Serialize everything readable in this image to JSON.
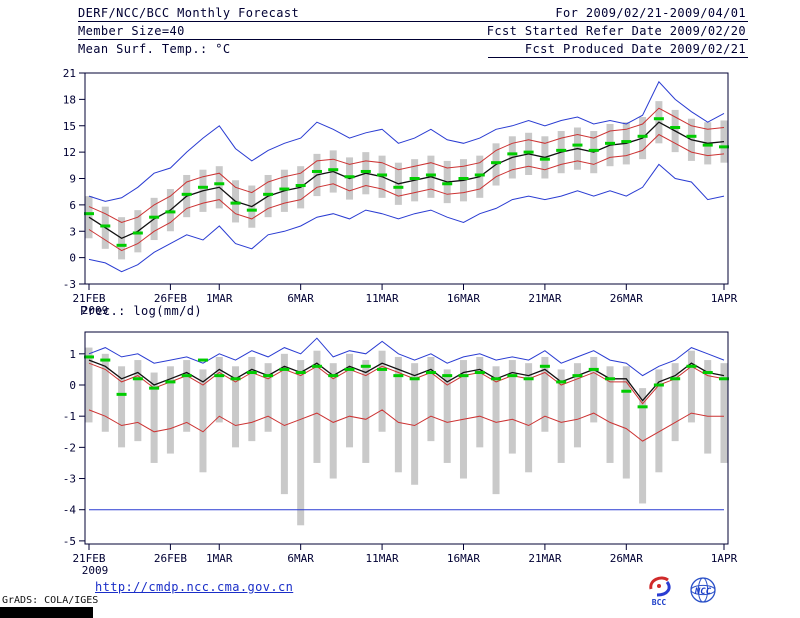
{
  "header": {
    "title": "DERF/NCC/BCC Monthly Forecast",
    "member_size": "Member Size=40",
    "variable": "Mean Surf. Temp.: °C",
    "for_range": "For 2009/02/21-2009/04/01",
    "refer_date": "Fcst Started Refer Date 2009/02/20",
    "produced_date": "Fcst Produced Date 2009/02/21"
  },
  "footer": {
    "url": "http://cmdp.ncc.cma.gov.cn",
    "grads_credit": "GrADS: COLA/IGES",
    "logos": [
      "BCC",
      "NCC"
    ]
  },
  "colors": {
    "foreground": "#000033",
    "blue": "#2a3cd2",
    "red": "#cc3333",
    "green": "#00cc00",
    "gray": "#c9c9c9",
    "black": "#111111",
    "url_blue": "#1a2ec8"
  },
  "chart_data": [
    {
      "type": "line",
      "title": "Mean Surf. Temp.: °C",
      "n_points": 40,
      "ylim": [
        -3,
        21
      ],
      "yticks": [
        21,
        18,
        15,
        12,
        9,
        6,
        3,
        0,
        -3
      ],
      "x_tick_labels": [
        "21FEB",
        "26FEB",
        "1MAR",
        "6MAR",
        "11MAR",
        "16MAR",
        "21MAR",
        "26MAR",
        "1APR"
      ],
      "x_tick_positions": [
        0,
        5,
        8,
        13,
        18,
        23,
        28,
        33,
        39
      ],
      "x_sub_label": "2009",
      "series": [
        {
          "name": "ensemble-spread-bar",
          "type": "bar",
          "color": "#c9c9c9",
          "low": [
            2.2,
            1.0,
            -0.2,
            0.6,
            2.0,
            3.0,
            4.6,
            5.2,
            5.6,
            4.0,
            3.4,
            4.6,
            5.2,
            5.6,
            7.0,
            7.4,
            6.6,
            7.2,
            6.8,
            6.0,
            6.4,
            6.8,
            6.2,
            6.4,
            6.8,
            8.2,
            9.0,
            9.4,
            9.0,
            9.6,
            10.0,
            9.6,
            10.4,
            10.6,
            11.2,
            13.0,
            12.0,
            11.0,
            10.6,
            10.8
          ],
          "high": [
            7.0,
            5.8,
            4.6,
            5.4,
            6.8,
            7.8,
            9.4,
            10.0,
            10.4,
            8.8,
            8.2,
            9.4,
            10.0,
            10.4,
            11.8,
            12.2,
            11.4,
            12.0,
            11.6,
            10.8,
            11.2,
            11.6,
            11.0,
            11.2,
            11.6,
            13.0,
            13.8,
            14.2,
            13.8,
            14.4,
            14.8,
            14.4,
            15.2,
            15.4,
            16.0,
            17.8,
            16.8,
            15.8,
            15.4,
            15.6
          ]
        },
        {
          "name": "ensemble-max-line",
          "type": "line",
          "color": "#2a3cd2",
          "values": [
            7.0,
            6.4,
            6.8,
            8.0,
            9.6,
            10.2,
            12.0,
            13.6,
            15.0,
            12.4,
            11.0,
            12.2,
            13.0,
            13.6,
            15.4,
            14.6,
            13.6,
            14.2,
            14.6,
            13.0,
            13.6,
            14.6,
            13.4,
            13.0,
            13.6,
            14.6,
            15.0,
            15.6,
            15.0,
            15.6,
            16.0,
            15.2,
            15.6,
            15.2,
            16.2,
            20.0,
            18.0,
            16.6,
            15.4,
            16.4
          ]
        },
        {
          "name": "ensemble-min-line",
          "type": "line",
          "color": "#2a3cd2",
          "values": [
            -0.2,
            -0.6,
            -1.6,
            -0.8,
            0.6,
            1.6,
            2.6,
            2.0,
            3.6,
            1.6,
            1.0,
            2.6,
            3.0,
            3.6,
            4.6,
            5.0,
            4.4,
            5.4,
            5.0,
            4.4,
            5.0,
            5.4,
            4.6,
            4.0,
            5.0,
            5.6,
            6.6,
            7.0,
            6.6,
            7.0,
            7.6,
            7.0,
            7.6,
            7.0,
            8.0,
            10.6,
            9.0,
            8.6,
            6.6,
            7.0
          ]
        },
        {
          "name": "upper-quartile-line",
          "type": "line",
          "color": "#cc3333",
          "values": [
            5.8,
            5.0,
            4.0,
            4.6,
            6.0,
            7.0,
            8.6,
            9.2,
            9.6,
            8.0,
            7.4,
            8.6,
            9.2,
            9.6,
            11.0,
            11.2,
            10.6,
            11.0,
            10.8,
            10.0,
            10.4,
            10.8,
            10.2,
            10.4,
            10.8,
            12.2,
            13.0,
            13.4,
            13.0,
            13.6,
            14.0,
            13.6,
            14.4,
            14.6,
            15.2,
            17.0,
            16.0,
            15.0,
            14.6,
            14.8
          ]
        },
        {
          "name": "lower-quartile-line",
          "type": "line",
          "color": "#cc3333",
          "values": [
            3.2,
            2.0,
            0.8,
            1.6,
            3.0,
            4.0,
            5.6,
            6.2,
            6.6,
            5.0,
            4.4,
            5.6,
            6.2,
            6.6,
            8.0,
            8.4,
            7.6,
            8.2,
            7.8,
            7.0,
            7.4,
            7.8,
            7.2,
            7.4,
            7.8,
            9.2,
            10.0,
            10.4,
            10.0,
            10.6,
            11.0,
            10.6,
            11.4,
            11.6,
            12.2,
            14.0,
            13.0,
            12.0,
            11.6,
            11.8
          ]
        },
        {
          "name": "ensemble-mean-line",
          "type": "line",
          "color": "#111111",
          "width": 1.3,
          "values": [
            4.6,
            3.4,
            2.2,
            3.0,
            4.4,
            5.4,
            7.0,
            7.6,
            8.0,
            6.4,
            5.8,
            7.0,
            7.6,
            8.0,
            9.4,
            9.8,
            9.0,
            9.6,
            9.2,
            8.4,
            8.8,
            9.2,
            8.6,
            8.8,
            9.2,
            10.6,
            11.4,
            11.8,
            11.4,
            12.0,
            12.4,
            12.0,
            12.8,
            13.0,
            13.6,
            15.4,
            14.4,
            13.4,
            13.0,
            13.2
          ]
        },
        {
          "name": "observation-dash",
          "type": "dash",
          "color": "#00cc00",
          "values": [
            5.0,
            3.6,
            1.4,
            2.8,
            4.6,
            5.2,
            7.2,
            8.0,
            8.4,
            6.2,
            5.4,
            7.2,
            7.8,
            8.2,
            9.8,
            10.0,
            9.2,
            9.8,
            9.4,
            8.0,
            9.0,
            9.4,
            8.4,
            9.0,
            9.4,
            10.8,
            11.8,
            12.0,
            11.2,
            12.2,
            12.8,
            12.2,
            13.0,
            13.2,
            13.8,
            15.8,
            14.8,
            13.8,
            12.8,
            12.6
          ]
        }
      ]
    },
    {
      "type": "line",
      "title": "Prec.: log(mm/d)",
      "n_points": 40,
      "ylim": [
        -5.1,
        1.7
      ],
      "yticks": [
        1,
        0,
        -1,
        -2,
        -3,
        -4,
        -5
      ],
      "x_tick_labels": [
        "21FEB",
        "26FEB",
        "1MAR",
        "6MAR",
        "11MAR",
        "16MAR",
        "21MAR",
        "26MAR",
        "1APR"
      ],
      "x_tick_positions": [
        0,
        5,
        8,
        13,
        18,
        23,
        28,
        33,
        39
      ],
      "x_sub_label": "2009",
      "series": [
        {
          "name": "ensemble-spread-bar",
          "type": "bar",
          "color": "#c9c9c9",
          "low": [
            -1.2,
            -1.5,
            -2.0,
            -1.8,
            -2.5,
            -2.2,
            -1.5,
            -2.8,
            -1.2,
            -2.0,
            -1.8,
            -1.5,
            -3.5,
            -4.5,
            -2.5,
            -3.0,
            -2.0,
            -2.5,
            -1.5,
            -2.8,
            -3.2,
            -1.8,
            -2.5,
            -3.0,
            -2.0,
            -3.5,
            -2.2,
            -2.8,
            -1.5,
            -2.5,
            -2.0,
            -1.2,
            -2.5,
            -3.0,
            -3.8,
            -2.8,
            -1.8,
            -1.2,
            -2.2,
            -2.5
          ],
          "high": [
            1.2,
            1.0,
            0.6,
            0.8,
            0.4,
            0.6,
            0.8,
            0.5,
            0.9,
            0.6,
            0.9,
            0.7,
            1.0,
            0.8,
            1.1,
            0.7,
            1.0,
            0.8,
            1.1,
            0.9,
            0.7,
            0.9,
            0.5,
            0.8,
            0.9,
            0.6,
            0.8,
            0.7,
            0.9,
            0.5,
            0.7,
            0.9,
            0.6,
            0.6,
            -0.1,
            0.5,
            0.7,
            1.1,
            0.8,
            0.7
          ]
        },
        {
          "name": "ensemble-max-line",
          "type": "line",
          "color": "#2a3cd2",
          "values": [
            1.0,
            1.2,
            0.9,
            1.0,
            0.7,
            0.8,
            0.9,
            0.7,
            1.0,
            0.8,
            1.1,
            0.9,
            1.2,
            1.0,
            1.5,
            0.9,
            1.1,
            1.0,
            1.4,
            1.0,
            0.8,
            1.0,
            0.7,
            0.9,
            1.0,
            0.8,
            0.9,
            0.8,
            1.1,
            0.7,
            0.9,
            1.1,
            0.8,
            0.7,
            0.3,
            0.6,
            0.8,
            1.2,
            1.0,
            0.8
          ]
        },
        {
          "name": "ensemble-min-floor-line",
          "type": "line",
          "color": "#2a3cd2",
          "constant": -4
        },
        {
          "name": "upper-quartile-line",
          "type": "line",
          "color": "#cc3333",
          "values": [
            0.7,
            0.5,
            0.1,
            0.3,
            -0.1,
            0.1,
            0.3,
            0.0,
            0.4,
            0.1,
            0.4,
            0.2,
            0.5,
            0.3,
            0.6,
            0.2,
            0.5,
            0.3,
            0.6,
            0.4,
            0.2,
            0.4,
            0.0,
            0.3,
            0.4,
            0.1,
            0.3,
            0.2,
            0.4,
            0.0,
            0.2,
            0.4,
            0.1,
            0.1,
            -0.6,
            0.0,
            0.2,
            0.6,
            0.3,
            0.2
          ]
        },
        {
          "name": "lower-quartile-line",
          "type": "line",
          "color": "#cc3333",
          "values": [
            -0.8,
            -1.0,
            -1.3,
            -1.2,
            -1.5,
            -1.4,
            -1.2,
            -1.5,
            -1.0,
            -1.3,
            -1.2,
            -1.0,
            -1.3,
            -1.1,
            -0.9,
            -1.2,
            -1.0,
            -1.1,
            -0.8,
            -1.2,
            -1.3,
            -1.0,
            -1.2,
            -1.1,
            -1.0,
            -1.2,
            -1.1,
            -1.3,
            -1.0,
            -1.2,
            -1.1,
            -0.9,
            -1.2,
            -1.4,
            -1.8,
            -1.5,
            -1.2,
            -0.9,
            -1.0,
            -1.0
          ]
        },
        {
          "name": "ensemble-mean-line",
          "type": "line",
          "color": "#111111",
          "width": 1.3,
          "values": [
            0.8,
            0.6,
            0.2,
            0.4,
            0.0,
            0.2,
            0.4,
            0.1,
            0.5,
            0.2,
            0.5,
            0.3,
            0.6,
            0.4,
            0.7,
            0.3,
            0.6,
            0.4,
            0.7,
            0.5,
            0.3,
            0.5,
            0.1,
            0.4,
            0.5,
            0.2,
            0.4,
            0.3,
            0.5,
            0.1,
            0.3,
            0.5,
            0.2,
            0.2,
            -0.5,
            0.1,
            0.3,
            0.7,
            0.4,
            0.3
          ]
        },
        {
          "name": "observation-dash",
          "type": "dash",
          "color": "#00cc00",
          "values": [
            0.9,
            0.8,
            -0.3,
            0.2,
            -0.1,
            0.1,
            0.3,
            0.8,
            0.3,
            0.2,
            0.4,
            0.3,
            0.5,
            0.4,
            0.6,
            0.3,
            0.5,
            0.6,
            0.5,
            0.3,
            0.2,
            0.4,
            0.3,
            0.3,
            0.4,
            0.2,
            0.3,
            0.2,
            0.6,
            0.1,
            0.3,
            0.5,
            0.2,
            -0.2,
            -0.7,
            0.0,
            0.2,
            0.6,
            0.4,
            0.2
          ]
        }
      ]
    }
  ]
}
